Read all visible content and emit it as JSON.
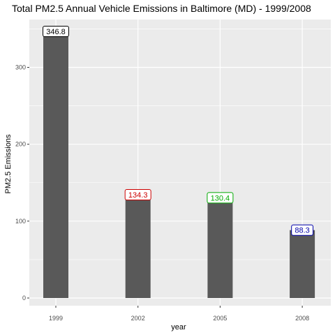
{
  "chart_data": {
    "type": "bar",
    "title": "Total PM2.5 Annual Vehicle Emissions in Baltimore (MD) - 1999/2008",
    "xlabel": "year",
    "ylabel": "PM2.5 Emissions",
    "categories": [
      "1999",
      "2002",
      "2005",
      "2008"
    ],
    "values": [
      346.8,
      134.3,
      130.4,
      88.3
    ],
    "data_labels": [
      "346.8",
      "134.3",
      "130.4",
      "88.3"
    ],
    "label_colors": [
      "#000000",
      "#cc0000",
      "#00aa00",
      "#0000aa"
    ],
    "bar_color": "#595959",
    "panel_background": "#ebebeb",
    "gridline_color": "#ffffff",
    "y_ticks": [
      0,
      100,
      200,
      300
    ],
    "y_tick_labels": [
      "0",
      "100",
      "200",
      "300"
    ],
    "ylim": [
      0,
      364
    ],
    "grid": true,
    "legend": "none"
  }
}
